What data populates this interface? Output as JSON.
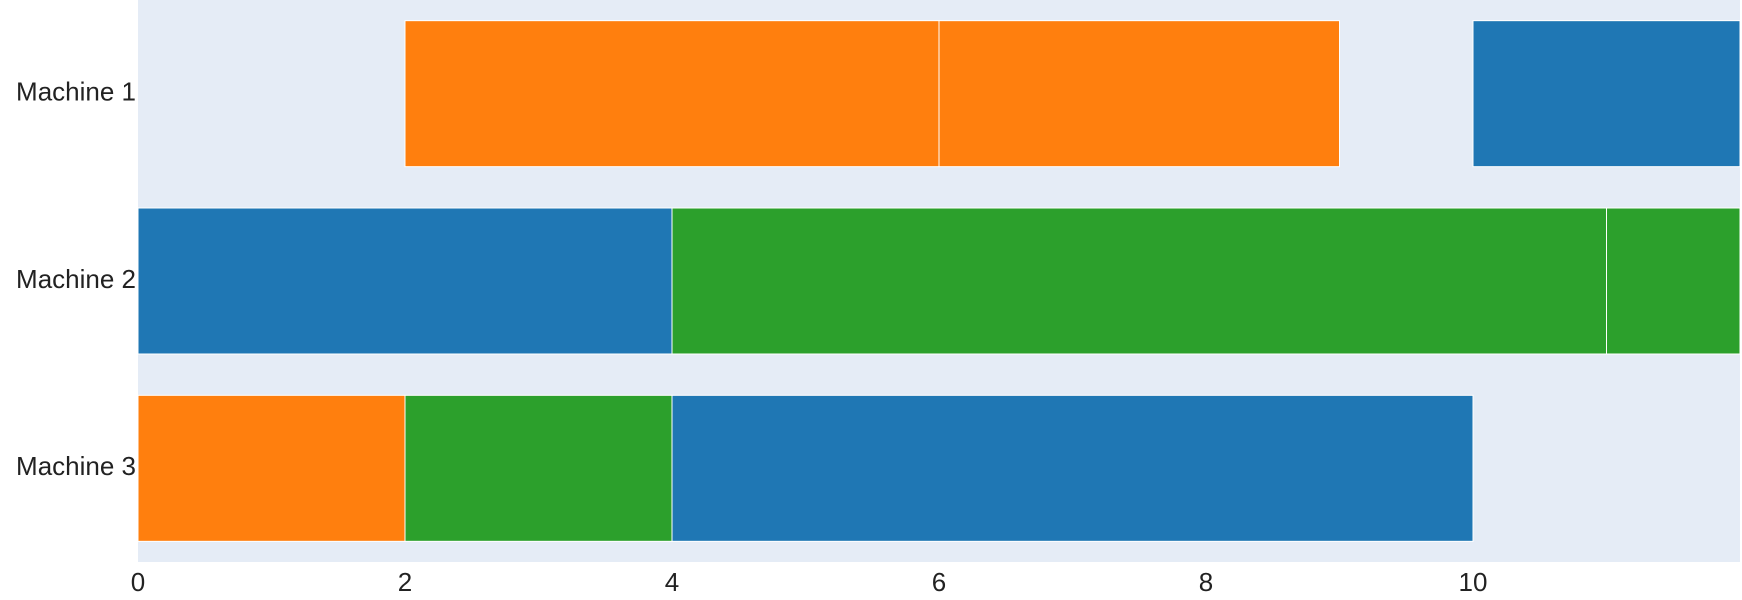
{
  "chart_data": {
    "type": "gantt",
    "title": "",
    "xlabel": "",
    "ylabel": "",
    "xlim": [
      0,
      12
    ],
    "x_ticks": [
      0,
      2,
      4,
      6,
      8,
      10
    ],
    "rows": [
      "Machine 1",
      "Machine 2",
      "Machine 3"
    ],
    "grid": false,
    "legend": "none",
    "colors": {
      "plot_background": "#e5ecf6",
      "blue": "#1f77b4",
      "orange": "#ff7f0e",
      "green": "#2ca02c",
      "segment_border": "#ffffff"
    },
    "tasks": [
      {
        "row": "Machine 1",
        "start": 2,
        "end": 6,
        "color": "orange"
      },
      {
        "row": "Machine 1",
        "start": 6,
        "end": 9,
        "color": "orange"
      },
      {
        "row": "Machine 1",
        "start": 10,
        "end": 12,
        "color": "blue"
      },
      {
        "row": "Machine 2",
        "start": 0,
        "end": 4,
        "color": "blue"
      },
      {
        "row": "Machine 2",
        "start": 4,
        "end": 11,
        "color": "green"
      },
      {
        "row": "Machine 2",
        "start": 11,
        "end": 12,
        "color": "green"
      },
      {
        "row": "Machine 3",
        "start": 0,
        "end": 2,
        "color": "orange"
      },
      {
        "row": "Machine 3",
        "start": 2,
        "end": 4,
        "color": "green"
      },
      {
        "row": "Machine 3",
        "start": 4,
        "end": 10,
        "color": "blue"
      }
    ]
  }
}
